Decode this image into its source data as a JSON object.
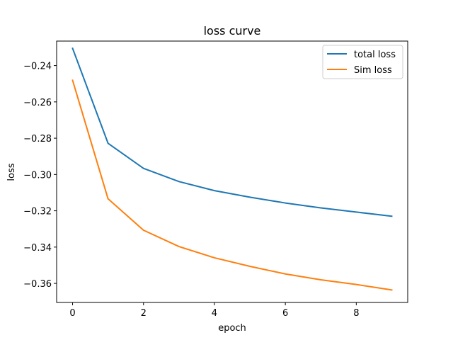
{
  "chart_data": {
    "type": "line",
    "title": "loss curve",
    "xlabel": "epoch",
    "ylabel": "loss",
    "xlim": [
      -0.45,
      9.45
    ],
    "ylim": [
      -0.3705,
      -0.2265
    ],
    "xticks": [
      0,
      2,
      4,
      6,
      8
    ],
    "xtick_labels": [
      "0",
      "2",
      "4",
      "6",
      "8"
    ],
    "yticks": [
      -0.24,
      -0.26,
      -0.28,
      -0.3,
      -0.32,
      -0.34,
      -0.36
    ],
    "ytick_labels": [
      "−0.24",
      "−0.26",
      "−0.28",
      "−0.30",
      "−0.32",
      "−0.34",
      "−0.36"
    ],
    "grid": false,
    "legend_position": "top-right",
    "x": [
      0,
      1,
      2,
      3,
      4,
      5,
      6,
      7,
      8,
      9
    ],
    "series": [
      {
        "name": "total loss",
        "color": "#1f77b4",
        "values": [
          -0.2305,
          -0.2828,
          -0.2966,
          -0.3039,
          -0.3089,
          -0.3125,
          -0.3157,
          -0.3184,
          -0.3207,
          -0.323
        ]
      },
      {
        "name": "Sim loss",
        "color": "#ff7f0e",
        "values": [
          -0.2481,
          -0.3134,
          -0.3307,
          -0.3397,
          -0.3459,
          -0.3506,
          -0.3548,
          -0.358,
          -0.3606,
          -0.3636
        ]
      }
    ]
  }
}
